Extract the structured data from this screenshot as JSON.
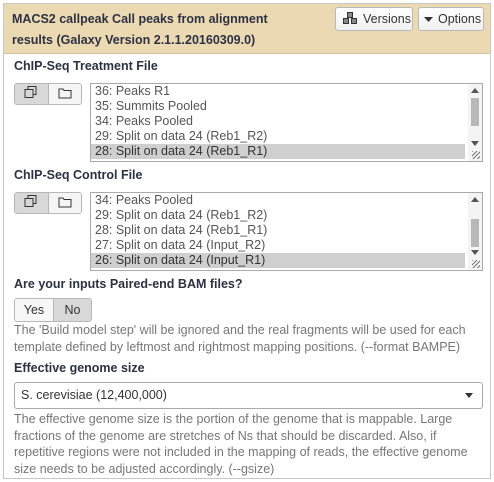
{
  "header": {
    "title": "MACS2 callpeak Call peaks from alignment results (Galaxy Version 2.1.1.20160309.0)",
    "versions_label": "Versions",
    "options_label": "Options"
  },
  "treatment": {
    "label": "ChIP-Seq Treatment File",
    "options": [
      {
        "label": "36: Peaks R1",
        "selected": false
      },
      {
        "label": "35: Summits Pooled",
        "selected": false
      },
      {
        "label": "34: Peaks Pooled",
        "selected": false
      },
      {
        "label": "29: Split on data 24 (Reb1_R2)",
        "selected": false
      },
      {
        "label": "28: Split on data 24 (Reb1_R1)",
        "selected": true
      }
    ]
  },
  "control": {
    "label": "ChIP-Seq Control File",
    "options": [
      {
        "label": "34: Peaks Pooled",
        "selected": false
      },
      {
        "label": "29: Split on data 24 (Reb1_R2)",
        "selected": false
      },
      {
        "label": "28: Split on data 24 (Reb1_R1)",
        "selected": false
      },
      {
        "label": "27: Split on data 24 (Input_R2)",
        "selected": false
      },
      {
        "label": "26: Split on data 24 (Input_R1)",
        "selected": true
      }
    ]
  },
  "paired_end": {
    "label": "Are your inputs Paired-end BAM files?",
    "yes_label": "Yes",
    "no_label": "No",
    "selected": "No",
    "help": "The 'Build model step' will be ignored and the real fragments will be used for each template defined by leftmost and rightmost mapping positions. (--format BAMPE)"
  },
  "genome_size": {
    "label": "Effective genome size",
    "value": "S. cerevisiae (12,400,000)",
    "help": "The effective genome size is the portion of the genome that is mappable. Large fractions of the genome are stretches of Ns that should be discarded. Also, if repetitive regions were not included in the mapping of reads, the effective genome size needs to be adjusted accordingly. (--gsize)"
  }
}
